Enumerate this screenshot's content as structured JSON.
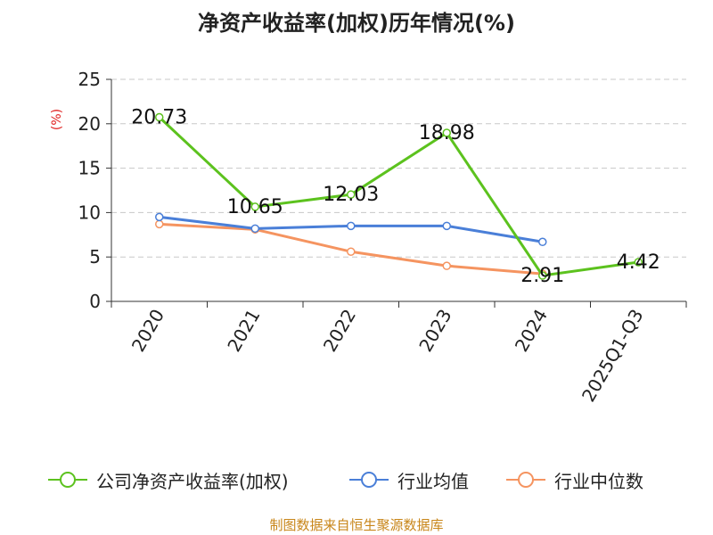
{
  "chart_data": {
    "type": "line",
    "title": "净资产收益率(加权)历年情况(%)",
    "ylabel": "(%)",
    "ylabel_color": "#e0201e",
    "ylim": [
      0,
      25
    ],
    "yticks": [
      "0",
      "5",
      "10",
      "15",
      "20",
      "25"
    ],
    "categories": [
      "2020",
      "2021",
      "2022",
      "2023",
      "2024",
      "2025Q1-Q3"
    ],
    "grid": true,
    "legend_position": "bottom",
    "series": [
      {
        "name": "公司净资产收益率(加权)",
        "color": "#5cc21e",
        "values": [
          20.73,
          10.65,
          12.03,
          18.98,
          2.91,
          4.42
        ],
        "labels": [
          "20.73",
          "10.65",
          "12.03",
          "18.98",
          "2.91",
          "4.42"
        ]
      },
      {
        "name": "行业均值",
        "color": "#4a7fd8",
        "values": [
          9.5,
          8.2,
          8.5,
          8.5,
          6.7,
          null
        ]
      },
      {
        "name": "行业中位数",
        "color": "#f59460",
        "values": [
          8.7,
          8.1,
          5.6,
          4.0,
          3.1,
          null
        ]
      }
    ],
    "source": "制图数据来自恒生聚源数据库"
  }
}
